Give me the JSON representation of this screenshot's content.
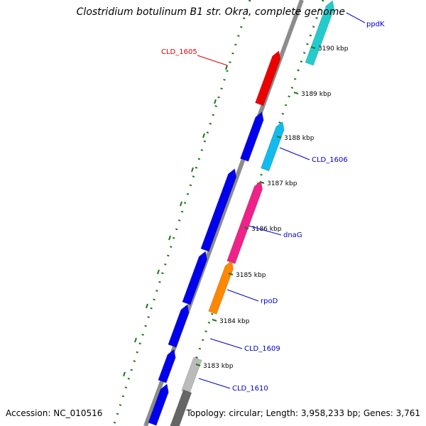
{
  "title": "Clostridium botulinum B1 str. Okra, complete genome",
  "footer": {
    "accession": "Accession: NC_010516",
    "topology": "Topology: circular; Length: 3,958,233 bp; Genes: 3,761"
  },
  "colors": {
    "backbone": "#8c8c8c",
    "forward_gene": "#0000ee",
    "gc_dots": "#1a7a1a",
    "gene_label": "#0000cc",
    "highlight_label": "#dd0000"
  },
  "ticks": [
    "3183 kbp",
    "3184 kbp",
    "3185 kbp",
    "3186 kbp",
    "3187 kbp",
    "3188 kbp",
    "3189 kbp",
    "3190 kbp"
  ],
  "gene_labels": [
    {
      "id": "ppdK",
      "text": "ppdK",
      "color": "#0000cc"
    },
    {
      "id": "cld1605",
      "text": "CLD_1605",
      "color": "#dd0000"
    },
    {
      "id": "cld1606",
      "text": "CLD_1606",
      "color": "#0000cc"
    },
    {
      "id": "dnag",
      "text": "dnaG",
      "color": "#0000cc"
    },
    {
      "id": "rpod",
      "text": "rpoD",
      "color": "#0000cc"
    },
    {
      "id": "cld1609",
      "text": "CLD_1609",
      "color": "#0000cc"
    },
    {
      "id": "cld1610",
      "text": "CLD_1610",
      "color": "#0000cc"
    }
  ],
  "features": [
    {
      "id": "fwd1",
      "color": "#0000ee"
    },
    {
      "id": "fwd2",
      "color": "#0000ee"
    },
    {
      "id": "fwd3",
      "color": "#0000ee"
    },
    {
      "id": "fwd4",
      "color": "#0000ee"
    },
    {
      "id": "fwd5",
      "color": "#0000ee"
    },
    {
      "id": "fwd6",
      "color": "#0000ee"
    },
    {
      "id": "fwd7",
      "color": "#0000ee"
    },
    {
      "id": "ppdK",
      "color": "#22cccc"
    },
    {
      "id": "cld1605",
      "color": "#ee0000"
    },
    {
      "id": "cld1606",
      "color": "#11bbee"
    },
    {
      "id": "dnag",
      "color": "#ee2288"
    },
    {
      "id": "rpod",
      "color": "#ff8800"
    },
    {
      "id": "cld1610",
      "color": "#bbbbbb"
    },
    {
      "id": "grayend",
      "color": "#666666"
    }
  ]
}
